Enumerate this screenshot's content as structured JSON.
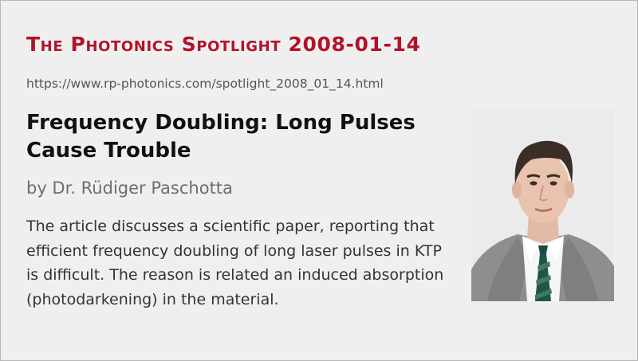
{
  "header": {
    "series_title": "The Photonics Spotlight 2008-01-14",
    "url": "https://www.rp-photonics.com/spotlight_2008_01_14.html"
  },
  "article": {
    "title": "Frequency Doubling: Long Pulses Cause Trouble",
    "byline": "by Dr. Rüdiger Paschotta",
    "summary": "The article discusses a scientific paper, reporting that efficient frequency doubling of long laser pulses in KTP is difficult. The reason is related an induced absorption (photodarkening) in the material."
  },
  "colors": {
    "series_title": "#b0142a",
    "background": "#efefef",
    "border": "#b8b8b8"
  },
  "images": {
    "author_photo": "author-portrait"
  }
}
